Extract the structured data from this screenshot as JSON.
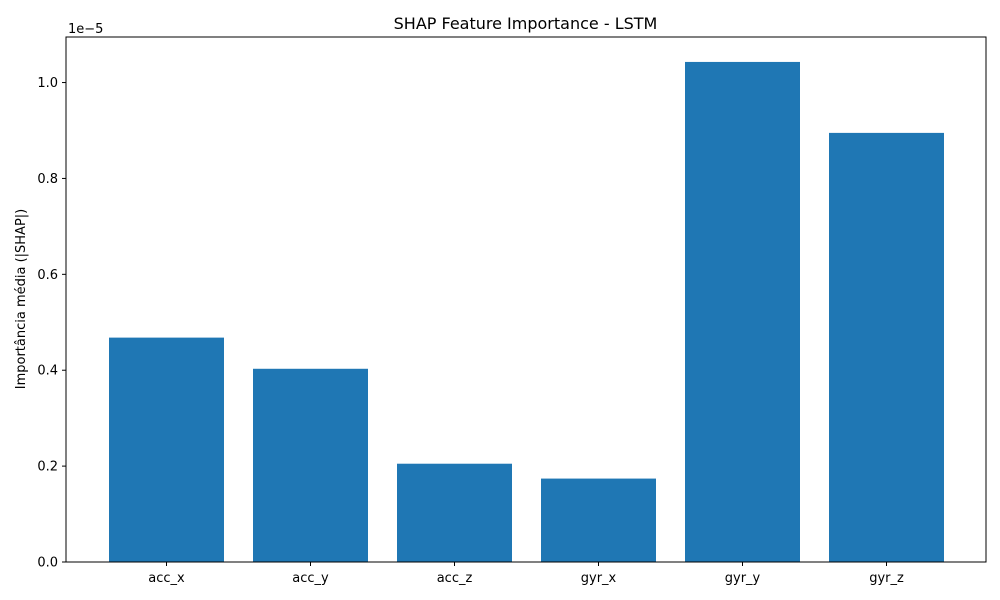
{
  "chart_data": {
    "type": "bar",
    "title": "SHAP Feature Importance - LSTM",
    "xlabel": "",
    "ylabel": "Importância média (|SHAP|)",
    "scale_label": "1e−5",
    "categories": [
      "acc_x",
      "acc_y",
      "acc_z",
      "gyr_x",
      "gyr_y",
      "gyr_z"
    ],
    "values": [
      0.468,
      0.403,
      0.205,
      0.174,
      1.043,
      0.895
    ],
    "ylim": [
      0,
      1.095
    ],
    "yticks": [
      0.0,
      0.2,
      0.4,
      0.6,
      0.8,
      1.0
    ],
    "ytick_labels": [
      "0.0",
      "0.2",
      "0.4",
      "0.6",
      "0.8",
      "1.0"
    ],
    "grid": false,
    "bar_color": "#1f77b4"
  }
}
